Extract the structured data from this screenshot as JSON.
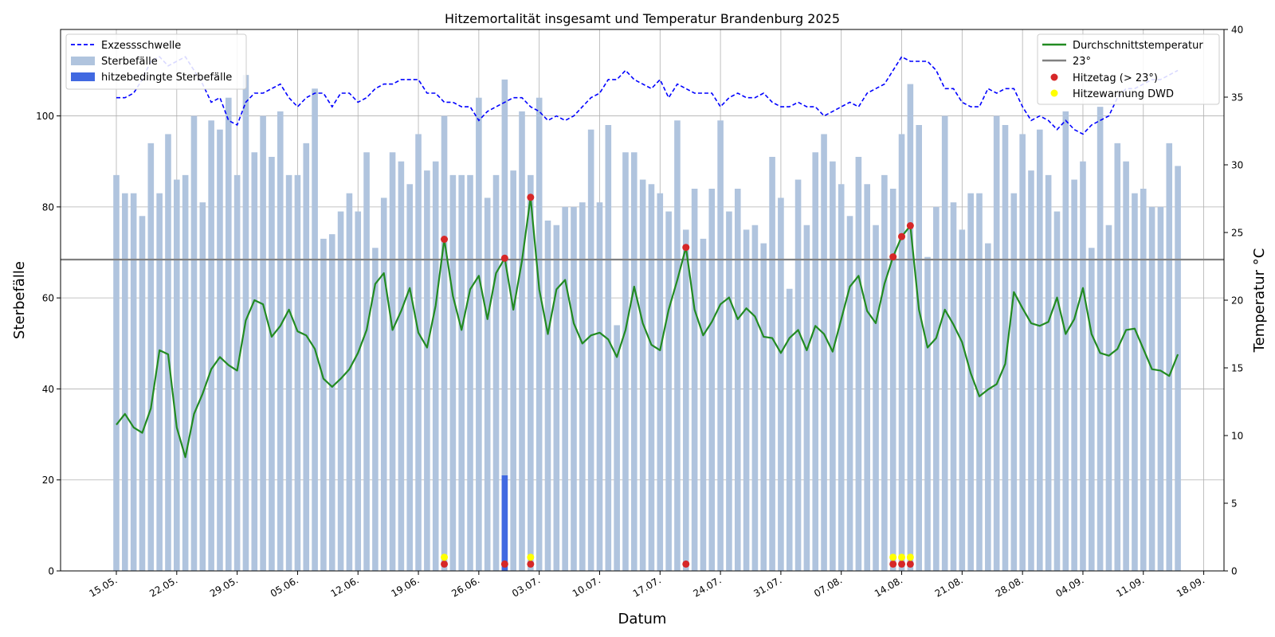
{
  "chart_data": {
    "type": "bar",
    "title": "Hitzemortalität insgesamt und Temperatur Brandenburg 2025",
    "xlabel": "Datum",
    "ylabel": "Sterbefälle",
    "y2label": "Temperatur °C",
    "ylim": [
      0,
      119
    ],
    "y2lim": [
      0,
      40
    ],
    "yticks": [
      0,
      20,
      40,
      60,
      80,
      100
    ],
    "y2ticks": [
      0,
      5,
      10,
      15,
      20,
      25,
      30,
      35,
      40
    ],
    "x_tick_labels": [
      "15.05.",
      "22.05.",
      "29.05.",
      "05.06.",
      "12.06.",
      "19.06.",
      "26.06.",
      "03.07.",
      "10.07.",
      "17.07.",
      "24.07.",
      "31.07.",
      "07.08.",
      "14.08.",
      "21.08.",
      "28.08.",
      "04.09.",
      "11.09.",
      "18.09."
    ],
    "grid": true,
    "start_date": "15.05.",
    "threshold_value": 23,
    "legend_left": [
      "Exzessschwelle",
      "Sterbefälle",
      "hitzebedingte Sterbefälle"
    ],
    "legend_right": [
      "Durchschnittstemperatur",
      "23°",
      "Hitzetag (> 23°)",
      "Hitzewarnung DWD"
    ],
    "colors": {
      "bars": "#b0c4de",
      "heat_bars": "#4169e1",
      "threshold_line": "#0000ff",
      "temperature": "#228b22",
      "line_23": "#808080",
      "heat_day": "#d62728",
      "warning": "#ffff00"
    },
    "series": [
      {
        "name": "Sterbefälle",
        "values": [
          87,
          83,
          83,
          78,
          94,
          83,
          96,
          86,
          87,
          100,
          81,
          99,
          97,
          104,
          87,
          109,
          92,
          100,
          91,
          101,
          87,
          87,
          94,
          106,
          73,
          74,
          79,
          83,
          79,
          92,
          71,
          82,
          92,
          90,
          85,
          96,
          88,
          90,
          100,
          87,
          87,
          87,
          104,
          82,
          87,
          108,
          88,
          101,
          87,
          104,
          77,
          76,
          80,
          80,
          81,
          97,
          81,
          98,
          54,
          92,
          92,
          86,
          85,
          83,
          79,
          99,
          75,
          84,
          73,
          84,
          99,
          79,
          84,
          75,
          76,
          72,
          91,
          82,
          62,
          86,
          76,
          92,
          96,
          90,
          85,
          78,
          91,
          85,
          76,
          87,
          84,
          96,
          107,
          98,
          69,
          80,
          100,
          81,
          75,
          83,
          83,
          72,
          100,
          98,
          83,
          96,
          88,
          97,
          87,
          79,
          101,
          86,
          90,
          71,
          102,
          76,
          94,
          90,
          83,
          84,
          80,
          80,
          94,
          89
        ]
      },
      {
        "name": "hitzebedingte Sterbefälle",
        "points": [
          {
            "day": 45,
            "value": 21
          }
        ]
      },
      {
        "name": "Exzessschwelle",
        "values": [
          104,
          104,
          105,
          108,
          112,
          113,
          111,
          112,
          113,
          110,
          107,
          103,
          104,
          99,
          98,
          103,
          105,
          105,
          106,
          107,
          104,
          102,
          104,
          105,
          105,
          102,
          105,
          105,
          103,
          104,
          106,
          107,
          107,
          108,
          108,
          108,
          105,
          105,
          103,
          103,
          102,
          102,
          99,
          101,
          102,
          103,
          104,
          104,
          102,
          101,
          99,
          100,
          99,
          100,
          102,
          104,
          105,
          108,
          108,
          110,
          108,
          107,
          106,
          108,
          104,
          107,
          106,
          105,
          105,
          105,
          102,
          104,
          105,
          104,
          104,
          105,
          103,
          102,
          102,
          103,
          102,
          102,
          100,
          101,
          102,
          103,
          102,
          105,
          106,
          107,
          110,
          113,
          112,
          112,
          112,
          110,
          106,
          106,
          103,
          102,
          102,
          106,
          105,
          106,
          106,
          102,
          99,
          100,
          99,
          97,
          99,
          97,
          96,
          98,
          99,
          100,
          104,
          106,
          106,
          107,
          108,
          108,
          109,
          110
        ]
      },
      {
        "name": "Durchschnittstemperatur",
        "values": [
          10.8,
          11.6,
          10.6,
          10.2,
          12.0,
          16.3,
          16.0,
          10.6,
          8.4,
          11.6,
          13.1,
          14.9,
          15.8,
          15.2,
          14.8,
          18.5,
          20.0,
          19.7,
          17.3,
          18.1,
          19.3,
          17.7,
          17.4,
          16.4,
          14.2,
          13.6,
          14.2,
          14.9,
          16.1,
          17.8,
          21.2,
          22.0,
          17.8,
          19.2,
          20.9,
          17.6,
          16.5,
          19.6,
          24.5,
          20.3,
          17.8,
          20.8,
          21.8,
          18.6,
          22.0,
          23.1,
          19.3,
          22.9,
          27.6,
          20.8,
          17.5,
          20.8,
          21.5,
          18.3,
          16.8,
          17.4,
          17.6,
          17.1,
          15.8,
          17.8,
          21.0,
          18.3,
          16.7,
          16.3,
          19.3,
          21.5,
          23.9,
          19.3,
          17.4,
          18.4,
          19.7,
          20.2,
          18.6,
          19.4,
          18.8,
          17.3,
          17.2,
          16.1,
          17.2,
          17.8,
          16.3,
          18.1,
          17.5,
          16.2,
          18.6,
          21.0,
          21.8,
          19.2,
          18.3,
          21.2,
          23.2,
          24.7,
          25.5,
          19.3,
          16.5,
          17.2,
          19.3,
          18.2,
          16.9,
          14.6,
          12.9,
          13.4,
          13.8,
          15.3,
          20.6,
          19.4,
          18.3,
          18.1,
          18.4,
          20.2,
          17.5,
          18.6,
          20.9,
          17.5,
          16.1,
          15.9,
          16.4,
          17.8,
          17.9,
          16.4,
          14.9,
          14.8,
          14.4,
          16.0
        ]
      },
      {
        "name": "Hitzetag (> 23°)",
        "days": [
          38,
          45,
          48,
          66,
          90,
          91,
          92
        ]
      },
      {
        "name": "Hitzewarnung DWD",
        "days": [
          38,
          48,
          90,
          91,
          92
        ]
      }
    ]
  }
}
